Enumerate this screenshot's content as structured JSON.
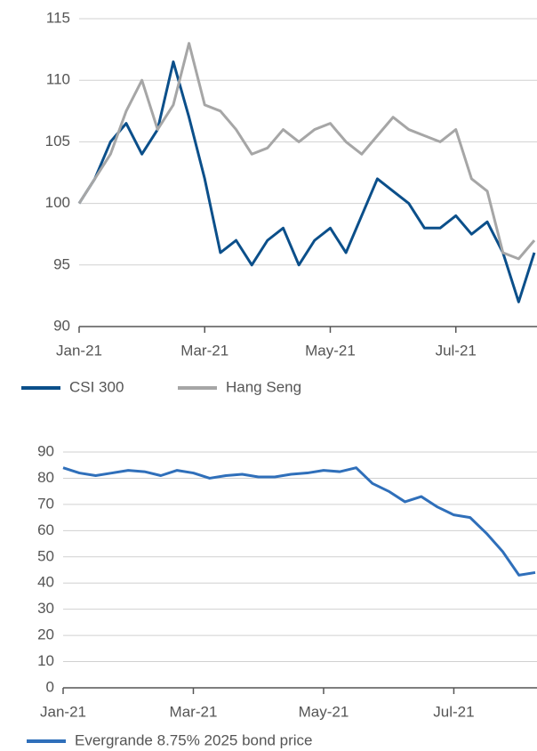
{
  "chart_data": [
    {
      "type": "line",
      "grid": true,
      "categories": [
        "Jan-21",
        null,
        null,
        null,
        null,
        null,
        null,
        null,
        "Mar-21",
        null,
        null,
        null,
        null,
        null,
        null,
        null,
        "May-21",
        null,
        null,
        null,
        null,
        null,
        null,
        null,
        "Jul-21",
        null,
        null,
        null,
        null,
        null
      ],
      "series": [
        {
          "name": "CSI 300",
          "color": "#0b4f8a",
          "values": [
            100,
            102,
            105,
            106.5,
            104,
            106,
            111.5,
            107,
            102,
            96,
            97,
            95,
            97,
            98,
            95,
            97,
            98,
            96,
            99,
            102,
            101,
            100,
            98,
            98,
            99,
            97.5,
            98.5,
            96,
            92,
            96
          ]
        },
        {
          "name": "Hang Seng",
          "color": "#a6a6a6",
          "values": [
            100,
            102,
            104,
            107.5,
            110,
            106,
            108,
            113,
            108,
            107.5,
            106,
            104,
            104.5,
            106,
            105,
            106,
            106.5,
            105,
            104,
            105.5,
            107,
            106,
            105.5,
            105,
            106,
            102,
            101,
            96,
            95.5,
            97
          ]
        }
      ],
      "ylim": [
        90,
        115
      ],
      "yticks": [
        90,
        95,
        100,
        105,
        110,
        115
      ]
    },
    {
      "type": "line",
      "grid": true,
      "categories": [
        "Jan-21",
        null,
        null,
        null,
        null,
        null,
        null,
        null,
        "Mar-21",
        null,
        null,
        null,
        null,
        null,
        null,
        null,
        "May-21",
        null,
        null,
        null,
        null,
        null,
        null,
        null,
        "Jul-21",
        null,
        null,
        null,
        null,
        null
      ],
      "series": [
        {
          "name": "Evergrande 8.75% 2025 bond price",
          "color": "#2f6fba",
          "values": [
            84,
            82,
            81,
            82,
            83,
            82.5,
            81,
            83,
            82,
            80,
            81,
            81.5,
            80.5,
            80.5,
            81.5,
            82,
            83,
            82.5,
            84,
            78,
            75,
            71,
            73,
            69,
            66,
            65,
            59,
            52,
            43,
            44
          ]
        }
      ],
      "ylim": [
        0,
        90
      ],
      "yticks": [
        0,
        10,
        20,
        30,
        40,
        50,
        60,
        70,
        80,
        90
      ]
    }
  ]
}
